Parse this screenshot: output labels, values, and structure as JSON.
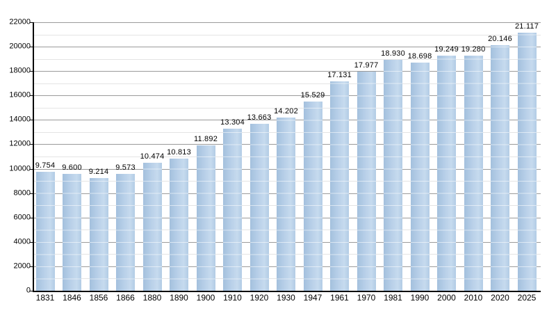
{
  "page": {
    "background": "#ffffff"
  },
  "chart_data": {
    "type": "bar",
    "title": "",
    "xlabel": "",
    "ylabel": "",
    "categories": [
      "1831",
      "1846",
      "1856",
      "1866",
      "1880",
      "1890",
      "1900",
      "1910",
      "1920",
      "1930",
      "1947",
      "1961",
      "1970",
      "1981",
      "1990",
      "2000",
      "2010",
      "2020",
      "2025"
    ],
    "values": [
      9754,
      9600,
      9214,
      9573,
      10474,
      10813,
      11892,
      13304,
      13663,
      14202,
      15529,
      17131,
      17977,
      18930,
      18698,
      19249,
      19280,
      20146,
      21117
    ],
    "bar_labels": [
      "9.754",
      "9.600",
      "9.214",
      "9.573",
      "10.474",
      "10.813",
      "11.892",
      "13.304",
      "13.663",
      "14.202",
      "15.529",
      "17.131",
      "17.977",
      "18.930",
      "18.698",
      "19.249",
      "19.280",
      "20.146",
      "21.117"
    ],
    "ylim": [
      0,
      22000
    ],
    "ytick_interval_major": 2000,
    "ytick_interval_minor": 1000,
    "ytick_labels": [
      "0",
      "2000",
      "4000",
      "6000",
      "8000",
      "10000",
      "12000",
      "14000",
      "16000",
      "18000",
      "20000",
      "22000"
    ],
    "grid": "on",
    "legend": "none",
    "colors": {
      "bar_fill_left": "#a3c0dd",
      "bar_fill_mid": "#b7cfe8",
      "bar_fill_right": "#c6daee",
      "bar_fill_edge": "#b2cce5",
      "bar_overlay_line": "rgba(255,255,255,0.55)",
      "gridline_major": "#9a9a9a",
      "gridline_minor": "#e4e4e4",
      "axis": "#000000",
      "text": "#000000",
      "background": "#ffffff"
    }
  }
}
